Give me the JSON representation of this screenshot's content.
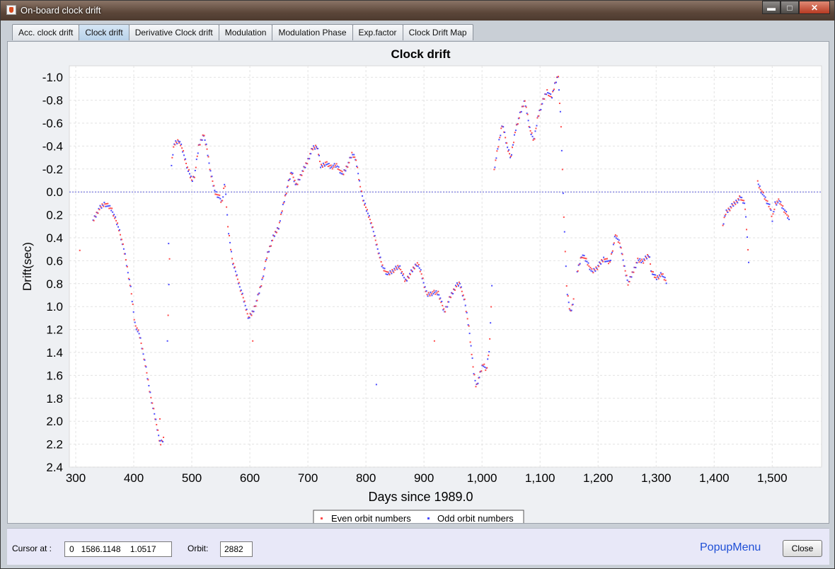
{
  "window": {
    "title": "On-board clock drift",
    "minimize": "▬",
    "maximize": "□",
    "close": "✕"
  },
  "tabs": [
    {
      "label": "Acc. clock drift",
      "active": false
    },
    {
      "label": "Clock drift",
      "active": true
    },
    {
      "label": "Derivative Clock drift",
      "active": false
    },
    {
      "label": "Modulation",
      "active": false
    },
    {
      "label": "Modulation Phase",
      "active": false
    },
    {
      "label": "Exp.factor",
      "active": false
    },
    {
      "label": "Clock Drift Map",
      "active": false
    }
  ],
  "chart_data": {
    "type": "scatter",
    "title": "Clock drift",
    "xlabel": "Days since 1989.0",
    "ylabel": "Drift(sec)",
    "xlim": [
      289,
      1585
    ],
    "ylim": [
      -1.1,
      2.4
    ],
    "y_inverted": true,
    "x_ticks": [
      "300",
      "400",
      "500",
      "600",
      "700",
      "800",
      "900",
      "1,000",
      "1,100",
      "1,200",
      "1,300",
      "1,400",
      "1,500"
    ],
    "x_tick_values": [
      300,
      400,
      500,
      600,
      700,
      800,
      900,
      1000,
      1100,
      1200,
      1300,
      1400,
      1500
    ],
    "y_ticks": [
      "-1.0",
      "-0.8",
      "-0.6",
      "-0.4",
      "-0.2",
      "0.0",
      "0.2",
      "0.4",
      "0.6",
      "0.8",
      "1.0",
      "1.2",
      "1.4",
      "1.6",
      "1.8",
      "2.0",
      "2.2",
      "2.4"
    ],
    "y_tick_values": [
      -1.0,
      -0.8,
      -0.6,
      -0.4,
      -0.2,
      0.0,
      0.2,
      0.4,
      0.6,
      0.8,
      1.0,
      1.2,
      1.4,
      1.6,
      1.8,
      2.0,
      2.2,
      2.4
    ],
    "grid": true,
    "zero_line": 0.0,
    "legend_position": "bottom-center",
    "series": [
      {
        "name": "Even orbit numbers",
        "color": "#ff4b4b"
      },
      {
        "name": "Odd orbit numbers",
        "color": "#4b4bff"
      }
    ],
    "curve_segments": [
      [
        [
          307,
          0.53
        ]
      ],
      [
        [
          330,
          0.25
        ],
        [
          340,
          0.15
        ],
        [
          350,
          0.1
        ],
        [
          362,
          0.15
        ],
        [
          375,
          0.33
        ],
        [
          385,
          0.55
        ],
        [
          395,
          0.85
        ],
        [
          402,
          1.15
        ],
        [
          410,
          1.25
        ],
        [
          418,
          1.45
        ],
        [
          428,
          1.75
        ],
        [
          438,
          2.0
        ],
        [
          446,
          2.2
        ],
        [
          452,
          2.15
        ]
      ],
      [
        [
          458,
          1.3
        ],
        [
          462,
          0.5
        ]
      ],
      [
        [
          465,
          -0.25
        ],
        [
          470,
          -0.42
        ],
        [
          478,
          -0.45
        ],
        [
          485,
          -0.35
        ],
        [
          493,
          -0.2
        ],
        [
          500,
          -0.1
        ],
        [
          505,
          -0.15
        ],
        [
          512,
          -0.4
        ],
        [
          520,
          -0.5
        ],
        [
          526,
          -0.38
        ],
        [
          533,
          -0.15
        ],
        [
          540,
          0.0
        ],
        [
          548,
          0.05
        ],
        [
          552,
          0.1
        ],
        [
          557,
          -0.1
        ],
        [
          562,
          0.3
        ],
        [
          570,
          0.6
        ],
        [
          580,
          0.78
        ],
        [
          590,
          0.95
        ],
        [
          598,
          1.1
        ],
        [
          605,
          1.05
        ],
        [
          612,
          0.95
        ],
        [
          620,
          0.8
        ],
        [
          630,
          0.55
        ],
        [
          640,
          0.4
        ],
        [
          650,
          0.3
        ],
        [
          658,
          0.1
        ],
        [
          665,
          -0.05
        ],
        [
          672,
          -0.18
        ],
        [
          680,
          -0.05
        ],
        [
          688,
          -0.15
        ],
        [
          698,
          -0.25
        ],
        [
          708,
          -0.38
        ],
        [
          716,
          -0.4
        ],
        [
          722,
          -0.22
        ],
        [
          730,
          -0.25
        ],
        [
          740,
          -0.22
        ],
        [
          750,
          -0.23
        ],
        [
          760,
          -0.15
        ],
        [
          770,
          -0.25
        ],
        [
          776,
          -0.33
        ],
        [
          782,
          -0.3
        ],
        [
          790,
          -0.05
        ],
        [
          797,
          0.1
        ],
        [
          808,
          0.25
        ],
        [
          818,
          0.45
        ],
        [
          828,
          0.65
        ],
        [
          838,
          0.72
        ],
        [
          848,
          0.68
        ],
        [
          858,
          0.65
        ],
        [
          868,
          0.78
        ],
        [
          878,
          0.7
        ],
        [
          888,
          0.62
        ],
        [
          895,
          0.7
        ],
        [
          905,
          0.9
        ],
        [
          915,
          0.88
        ],
        [
          925,
          0.88
        ],
        [
          935,
          1.05
        ],
        [
          945,
          0.92
        ],
        [
          955,
          0.82
        ],
        [
          962,
          0.8
        ],
        [
          970,
          0.95
        ],
        [
          978,
          1.2
        ],
        [
          985,
          1.55
        ],
        [
          990,
          1.7
        ],
        [
          996,
          1.6
        ],
        [
          1002,
          1.5
        ],
        [
          1008,
          1.55
        ],
        [
          1013,
          1.35
        ],
        [
          1018,
          0.7
        ]
      ],
      [
        [
          1021,
          -0.2
        ],
        [
          1028,
          -0.4
        ],
        [
          1035,
          -0.6
        ],
        [
          1043,
          -0.4
        ],
        [
          1050,
          -0.3
        ],
        [
          1058,
          -0.55
        ],
        [
          1067,
          -0.7
        ],
        [
          1074,
          -0.8
        ],
        [
          1082,
          -0.55
        ],
        [
          1090,
          -0.45
        ],
        [
          1096,
          -0.65
        ],
        [
          1104,
          -0.78
        ],
        [
          1112,
          -0.88
        ],
        [
          1120,
          -0.82
        ],
        [
          1126,
          -0.95
        ],
        [
          1131,
          -1.02
        ],
        [
          1136,
          -0.6
        ],
        [
          1141,
          0.2
        ],
        [
          1146,
          0.85
        ],
        [
          1152,
          1.05
        ],
        [
          1158,
          0.95
        ]
      ],
      [
        [
          1164,
          0.7
        ],
        [
          1172,
          0.55
        ],
        [
          1180,
          0.6
        ],
        [
          1190,
          0.7
        ],
        [
          1200,
          0.65
        ],
        [
          1210,
          0.58
        ],
        [
          1220,
          0.62
        ],
        [
          1230,
          0.38
        ],
        [
          1238,
          0.45
        ],
        [
          1245,
          0.65
        ],
        [
          1252,
          0.8
        ],
        [
          1260,
          0.7
        ],
        [
          1268,
          0.6
        ],
        [
          1278,
          0.6
        ],
        [
          1288,
          0.55
        ],
        [
          1292,
          0.7
        ],
        [
          1300,
          0.75
        ],
        [
          1310,
          0.72
        ],
        [
          1318,
          0.78
        ]
      ],
      [
        [
          1415,
          0.3
        ],
        [
          1420,
          0.18
        ],
        [
          1435,
          0.1
        ],
        [
          1445,
          0.05
        ],
        [
          1453,
          0.1
        ],
        [
          1460,
          0.65
        ]
      ],
      [
        [
          1475,
          -0.08
        ],
        [
          1482,
          0.0
        ],
        [
          1490,
          0.08
        ],
        [
          1496,
          0.12
        ],
        [
          1500,
          0.25
        ],
        [
          1505,
          0.1
        ],
        [
          1512,
          0.08
        ],
        [
          1520,
          0.15
        ],
        [
          1530,
          0.25
        ]
      ]
    ],
    "outliers": [
      [
        445,
        1.98
      ],
      [
        460,
        0.45
      ],
      [
        605,
        1.3
      ],
      [
        818,
        1.68
      ],
      [
        918,
        1.3
      ]
    ]
  },
  "bottom": {
    "cursor_label": "Cursor at :",
    "cursor_value": "0   1586.1148    1.0517",
    "orbit_label": "Orbit:",
    "orbit_value": "2882",
    "popup_label": "PopupMenu",
    "close_label": "Close"
  }
}
